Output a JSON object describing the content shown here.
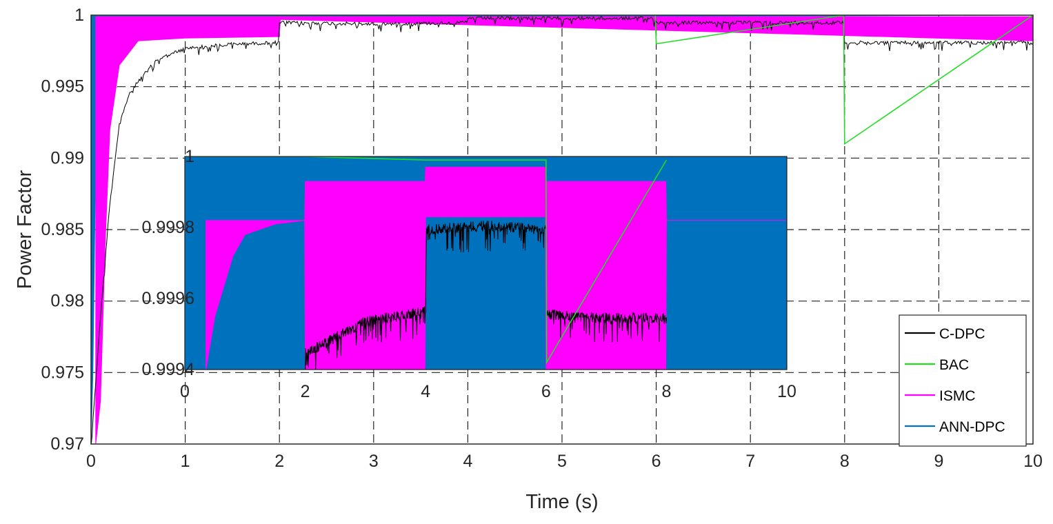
{
  "chart_data": [
    {
      "type": "line",
      "xlabel": "Time (s)",
      "ylabel": "Power Factor",
      "xlim": [
        0,
        10
      ],
      "ylim": [
        0.97,
        1
      ],
      "x_ticks": [
        "0",
        "1",
        "2",
        "3",
        "4",
        "5",
        "6",
        "7",
        "8",
        "9",
        "10"
      ],
      "y_ticks": [
        "0.97",
        "0.975",
        "0.98",
        "0.985",
        "0.99",
        "0.995",
        "1"
      ],
      "grid": "dashed",
      "legend_position": "bottom-right",
      "series": [
        {
          "name": "C-DPC",
          "color": "#000000",
          "style": "noisy",
          "x": [
            0,
            0.1,
            0.2,
            0.3,
            0.4,
            0.5,
            0.7,
            1.0,
            1.5,
            1.99,
            2.0,
            3.0,
            3.99,
            4.0,
            5.0,
            5.99,
            6.0,
            7.0,
            7.99,
            8.0,
            9.0,
            10.0
          ],
          "y": [
            0.97,
            0.979,
            0.987,
            0.9925,
            0.9945,
            0.9955,
            0.997,
            0.9978,
            0.9981,
            0.9982,
            0.9996,
            0.9995,
            0.9996,
            0.9999,
            0.9999,
            0.9999,
            0.9996,
            0.9996,
            0.9996,
            0.9982,
            0.9982,
            0.9982
          ]
        },
        {
          "name": "BAC",
          "color": "#22dd22",
          "style": "clean",
          "x": [
            0,
            1.99,
            2.0,
            5.99,
            6.0,
            7.99,
            8.0,
            10.0
          ],
          "y": [
            1,
            1,
            1,
            1,
            0.998,
            1,
            0.991,
            1
          ]
        },
        {
          "name": "ISMC",
          "color": "#ff00ff",
          "style": "band",
          "band_low_x": [
            0.05,
            0.1,
            0.15,
            0.2,
            0.3,
            0.5,
            1.0,
            2.0,
            2.01,
            10.0
          ],
          "band_low_y": [
            0.97,
            0.973,
            0.984,
            0.992,
            0.9965,
            0.9982,
            0.9984,
            0.9985,
            0.9997,
            0.9982
          ],
          "band_high_y": 0.9999
        },
        {
          "name": "ANN-DPC",
          "color": "#0072bd",
          "style": "band",
          "band_x": [
            0,
            0.02,
            0.05,
            0.1,
            0.15,
            0.2,
            0.3,
            10.0
          ],
          "band_low_y": [
            0.97,
            0.975,
            0.99,
            0.995,
            0.998,
            0.9992,
            0.9998,
            1
          ],
          "band_high_y": 1
        }
      ]
    },
    {
      "type": "line",
      "inset": true,
      "xlim": [
        0,
        10
      ],
      "ylim": [
        0.9994,
        1
      ],
      "x_ticks": [
        "0",
        "2",
        "4",
        "6",
        "8",
        "10"
      ],
      "y_ticks": [
        "0.9994",
        "0.9996",
        "0.9998",
        "1"
      ],
      "grid": "dashed",
      "series": [
        {
          "name": "C-DPC",
          "color": "#000000",
          "style": "noisy",
          "x": [
            2,
            3,
            4,
            4.01,
            5,
            6,
            6.01,
            7,
            8
          ],
          "y": [
            0.99946,
            0.99955,
            0.99958,
            0.99981,
            0.99982,
            0.99981,
            0.99957,
            0.99956,
            0.99956
          ]
        },
        {
          "name": "BAC",
          "color": "#22dd22",
          "style": "clean",
          "x": [
            0,
            2,
            4,
            4.01,
            6,
            6.01,
            8
          ],
          "y": [
            1,
            1,
            0.99999,
            0.99999,
            0.99999,
            0.99942,
            0.99999
          ]
        },
        {
          "name": "ISMC",
          "color": "#ff00ff",
          "style": "band",
          "band_x": [
            0.35,
            0.5,
            0.8,
            1.0,
            1.5,
            1.99,
            2.0,
            3.99,
            4.0,
            5.99,
            6.0,
            7.99,
            8.0,
            10.0
          ],
          "band_low_y": [
            0.9994,
            0.99955,
            0.99972,
            0.99978,
            0.99981,
            0.99982,
            0.9994,
            0.9994,
            0.99983,
            0.99983,
            0.9994,
            0.9994,
            0.99982,
            0.99982
          ],
          "band_high_y": [
            0.99982,
            0.99982,
            0.99982,
            0.99982,
            0.99982,
            0.99982,
            0.99993,
            0.99993,
            0.99997,
            0.99997,
            0.99993,
            0.99993,
            0.99982,
            0.99982
          ]
        },
        {
          "name": "ANN-DPC",
          "color": "#0072bd",
          "style": "band",
          "band_x": [
            0,
            10
          ],
          "band_low_y": [
            0.9994,
            0.9994
          ],
          "band_high_y": [
            1,
            1
          ]
        }
      ]
    }
  ],
  "legend": {
    "entries": [
      {
        "label": "C-DPC",
        "color": "#000000"
      },
      {
        "label": "BAC",
        "color": "#22dd22"
      },
      {
        "label": "ISMC",
        "color": "#ff00ff"
      },
      {
        "label": "ANN-DPC",
        "color": "#0072bd"
      }
    ]
  }
}
